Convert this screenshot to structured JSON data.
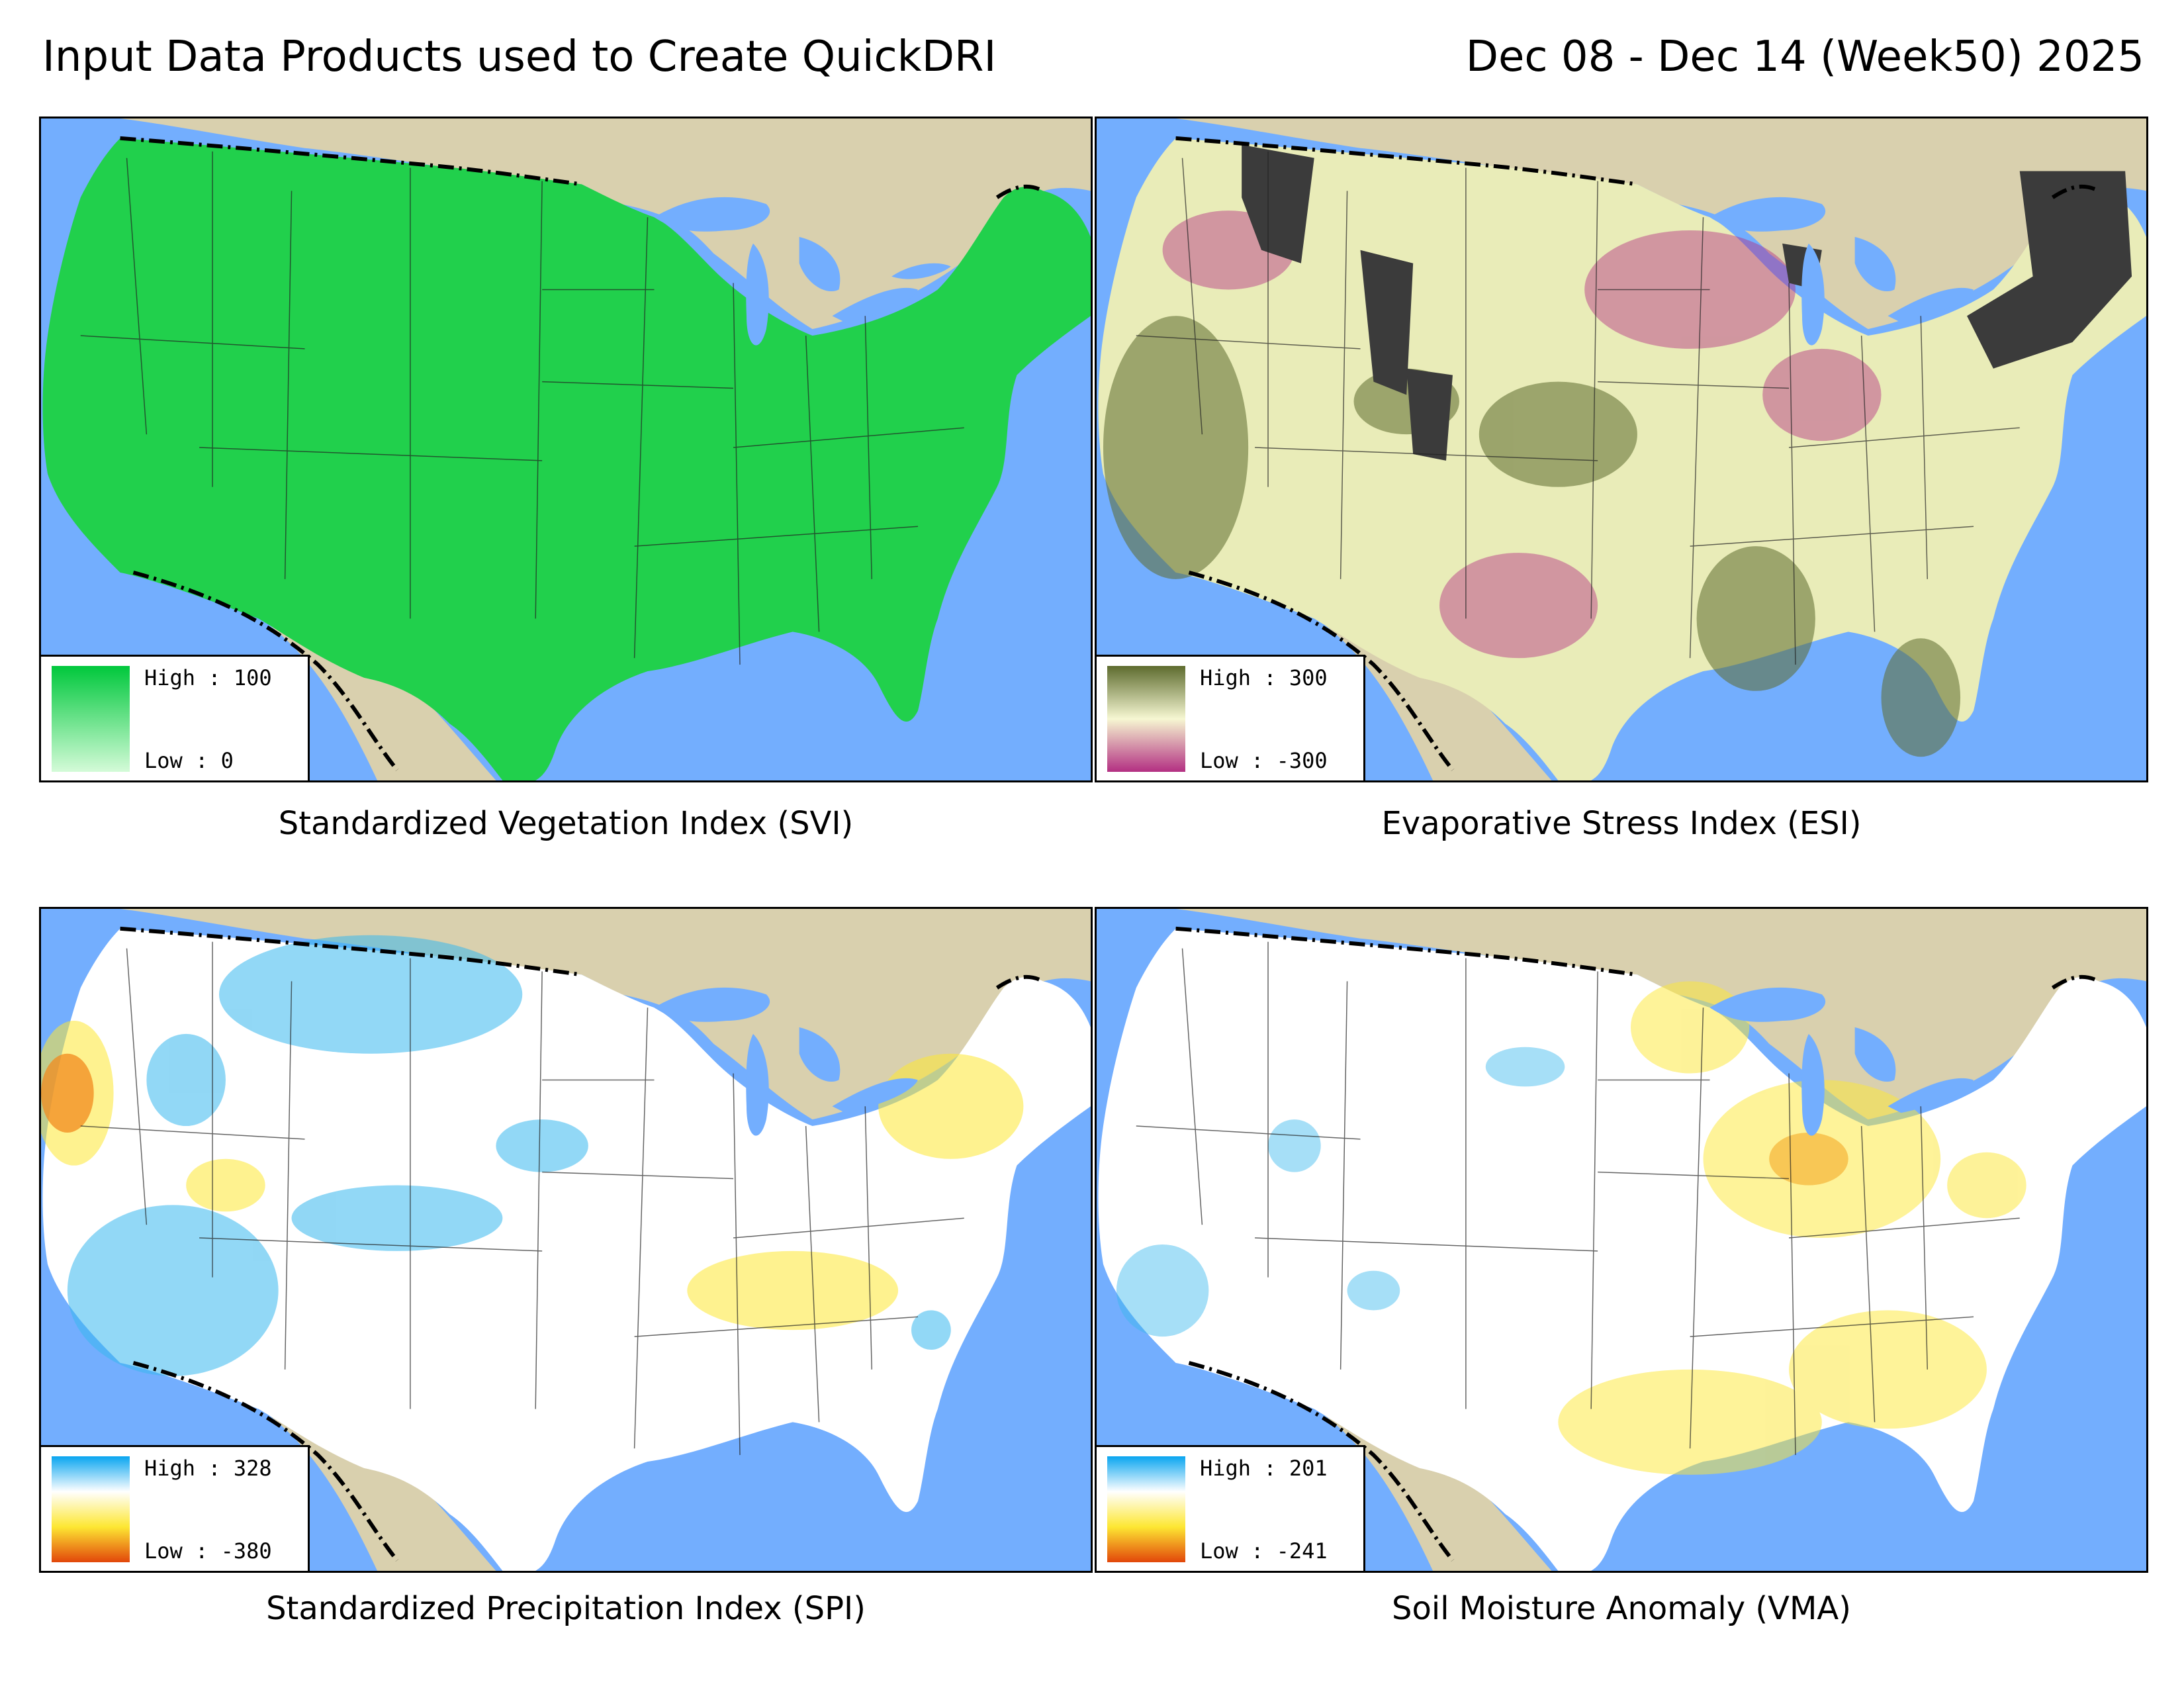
{
  "header": {
    "title": "Input Data Products used to Create QuickDRI",
    "date_range": "Dec 08 - Dec 14 (Week50) 2025"
  },
  "colors": {
    "water": "#73aefe",
    "land_outside": "#d9d0ae",
    "border": "#000000"
  },
  "panels": [
    {
      "caption": "Standardized Vegetation Index (SVI)",
      "legend": {
        "high": "High : 100",
        "low": "Low : 0",
        "ramp": [
          "#00c83c",
          "#d4fbd8"
        ]
      },
      "fill": "#21d04c"
    },
    {
      "caption": "Evaporative Stress Index (ESI)",
      "legend": {
        "high": "High : 300",
        "low": "Low : -300",
        "ramp": [
          "#5d6b2e",
          "#f6f7d2",
          "#b32f82"
        ]
      },
      "fill": "#e9ecb8"
    },
    {
      "caption": "Standardized Precipitation Index (SPI)",
      "legend": {
        "high": "High : 328",
        "low": "Low : -380",
        "ramp": [
          "#09a5f0",
          "#ffffff",
          "#fde733",
          "#e2460a"
        ]
      },
      "fill": "#ffffff"
    },
    {
      "caption": "Soil Moisture Anomaly (VMA)",
      "legend": {
        "high": "High : 201",
        "low": "Low : -241",
        "ramp": [
          "#09a5f0",
          "#ffffff",
          "#fde733",
          "#e2460a"
        ]
      },
      "fill": "#ffffff"
    }
  ]
}
